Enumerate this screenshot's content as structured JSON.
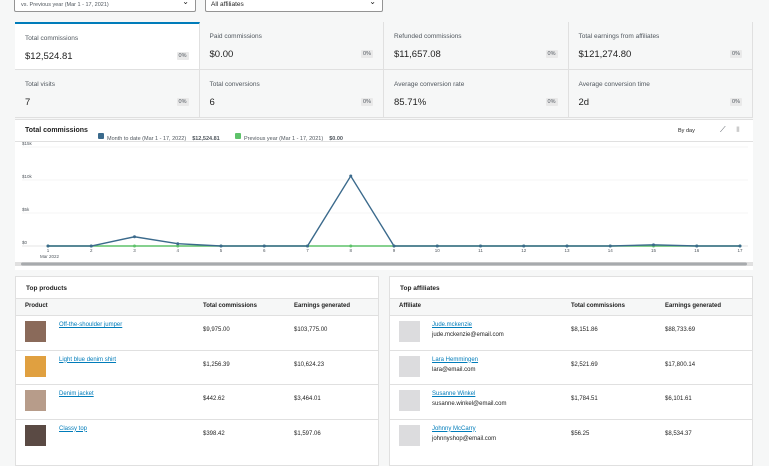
{
  "filters": {
    "date_compare": "vs. Previous year (Mar 1 - 17, 2021)",
    "affiliates": "All affiliates"
  },
  "stats": [
    {
      "label": "Total commissions",
      "value": "$12,524.81",
      "delta": "0%"
    },
    {
      "label": "Paid commissions",
      "value": "$0.00",
      "delta": "0%"
    },
    {
      "label": "Refunded commissions",
      "value": "$11,657.08",
      "delta": "0%"
    },
    {
      "label": "Total earnings from affiliates",
      "value": "$121,274.80",
      "delta": "0%"
    },
    {
      "label": "Total visits",
      "value": "7",
      "delta": "0%"
    },
    {
      "label": "Total conversions",
      "value": "6",
      "delta": "0%"
    },
    {
      "label": "Average conversion rate",
      "value": "85.71%",
      "delta": "0%"
    },
    {
      "label": "Average conversion time",
      "value": "2d",
      "delta": "0%"
    }
  ],
  "chart_data": {
    "type": "line",
    "title": "Total commissions",
    "interval": "By day",
    "x_label": "Mar 2022",
    "categories": [
      "1",
      "2",
      "3",
      "4",
      "5",
      "6",
      "7",
      "8",
      "9",
      "10",
      "11",
      "12",
      "13",
      "14",
      "15",
      "16",
      "17"
    ],
    "series": [
      {
        "name": "Month to date (Mar 1 - 17, 2022)",
        "total": "$12,524.81",
        "color": "#3b6a8c",
        "values": [
          0,
          0,
          1400,
          350,
          0,
          0,
          0,
          10600,
          0,
          0,
          0,
          0,
          0,
          0,
          175,
          0,
          0
        ]
      },
      {
        "name": "Previous year (Mar 1 - 17, 2021)",
        "total": "$0.00",
        "color": "#5ec26a",
        "values": [
          0,
          0,
          0,
          0,
          0,
          0,
          0,
          0,
          0,
          0,
          0,
          0,
          0,
          0,
          0,
          0,
          0
        ]
      }
    ],
    "ylim": [
      0,
      15000
    ],
    "yticks": [
      {
        "value": 0,
        "label": "$0"
      },
      {
        "value": 5000,
        "label": "$5k"
      },
      {
        "value": 10000,
        "label": "$10k"
      },
      {
        "value": 15000,
        "label": "$15k"
      }
    ],
    "grid": true
  },
  "top_products": {
    "title": "Top products",
    "headers": [
      "Product",
      "Total commissions",
      "Earnings generated"
    ],
    "rows": [
      [
        "Off-the-shoulder jumper",
        "$9,975.00",
        "$103,775.00"
      ],
      [
        "Light blue denim shirt",
        "$1,256.39",
        "$10,624.23"
      ],
      [
        "Denim jacket",
        "$442.62",
        "$3,464.01"
      ],
      [
        "Classy top",
        "$398.42",
        "$1,597.06"
      ]
    ]
  },
  "top_affiliates": {
    "title": "Top affiliates",
    "headers": [
      "Affiliate",
      "Total commissions",
      "Earnings generated"
    ],
    "rows": [
      [
        "Jude.mckenzie",
        "jude.mckenzie@email.com",
        "$8,151.86",
        "$88,733.69"
      ],
      [
        "Lara Hemmingen",
        "lara@email.com",
        "$2,521.69",
        "$17,800.14"
      ],
      [
        "Susanne Winkel",
        "susanne.winkel@email.com",
        "$1,784.51",
        "$6,101.61"
      ],
      [
        "Johnny McCarry",
        "johnnyshop@email.com",
        "$56.25",
        "$8,534.37"
      ]
    ]
  }
}
